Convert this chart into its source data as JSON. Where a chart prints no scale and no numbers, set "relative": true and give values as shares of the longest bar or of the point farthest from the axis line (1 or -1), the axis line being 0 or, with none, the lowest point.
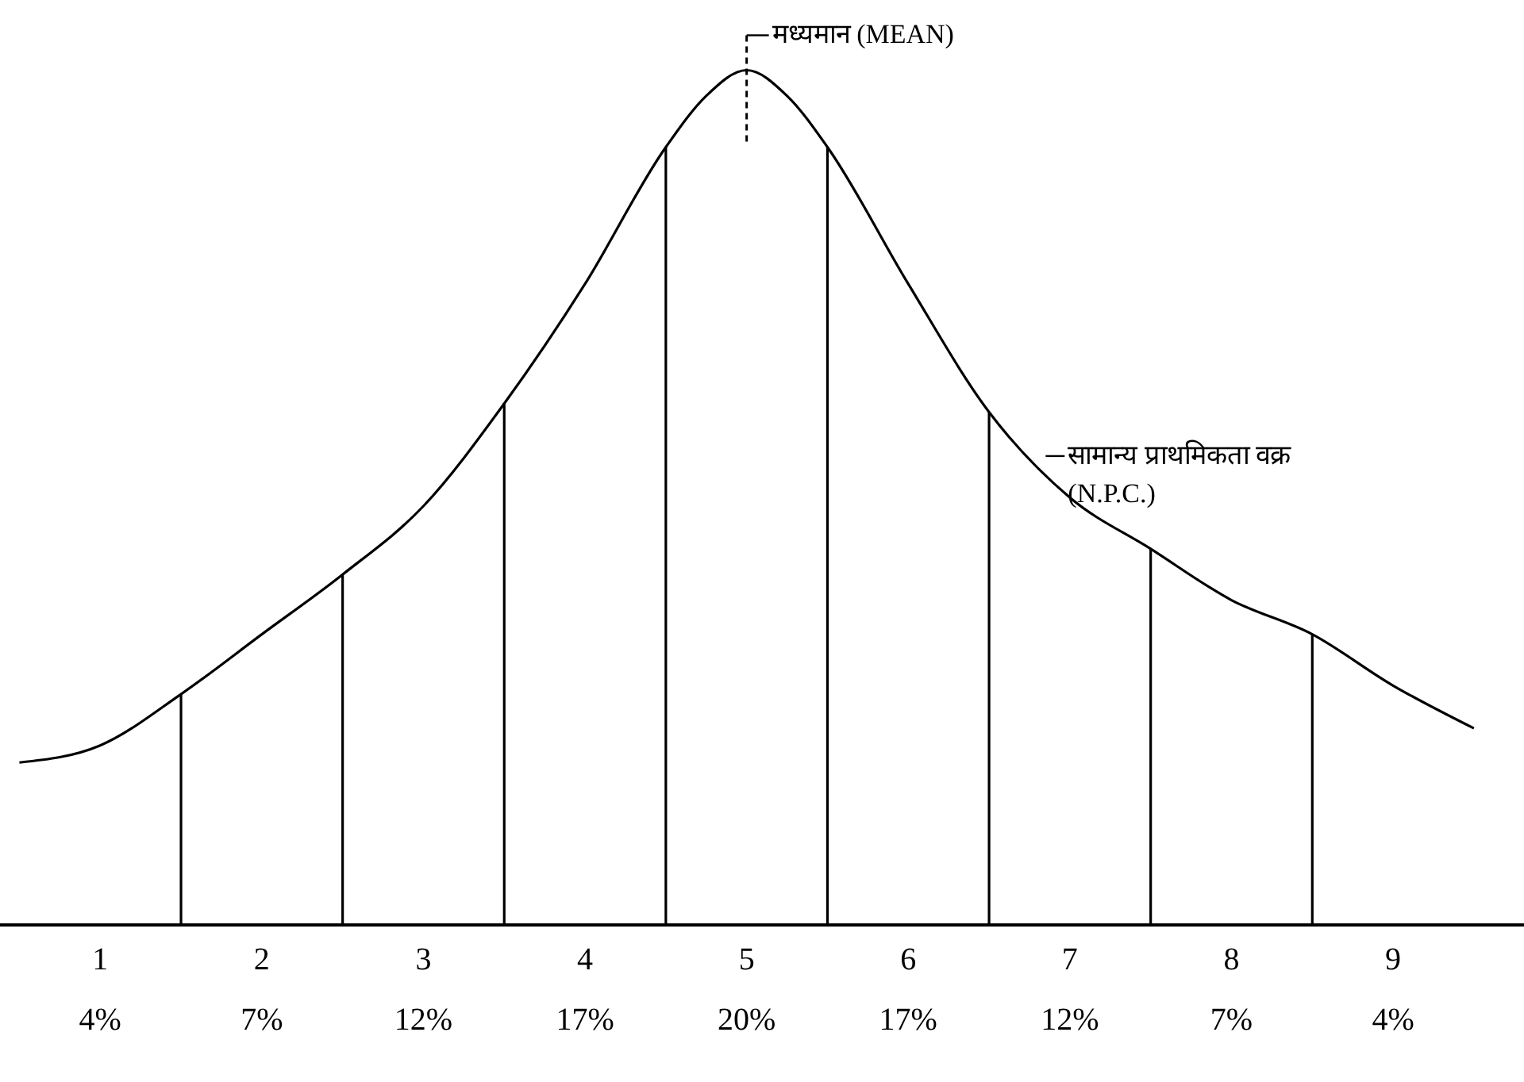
{
  "chart_data": {
    "type": "line",
    "relative": true,
    "legend": false,
    "marker": "none",
    "line_style": "solid",
    "grid": false,
    "xlim": [
      -0.12,
      9.31
    ],
    "xticks": [
      {
        "value": 0.5,
        "label": "1"
      },
      {
        "value": 1.5,
        "label": "2"
      },
      {
        "value": 2.5,
        "label": "3"
      },
      {
        "value": 3.5,
        "label": "4"
      },
      {
        "value": 4.5,
        "label": "5"
      },
      {
        "value": 5.5,
        "label": "6"
      },
      {
        "value": 6.5,
        "label": "7"
      },
      {
        "value": 7.5,
        "label": "8"
      },
      {
        "value": 8.5,
        "label": "9"
      }
    ],
    "tick_labels": "x",
    "series": [
      {
        "color": "#000000",
        "x": [
          0,
          0.5,
          1,
          1.5,
          2,
          2.5,
          3,
          3.5,
          4,
          4.25,
          4.5,
          4.75,
          5,
          5.5,
          6,
          6.5,
          7,
          7.5,
          8,
          8.5,
          9
        ],
        "values": [
          0.19,
          0.21,
          0.27,
          0.34,
          0.41,
          0.49,
          0.61,
          0.75,
          0.91,
          0.97,
          1.0,
          0.97,
          0.91,
          0.75,
          0.6,
          0.5,
          0.44,
          0.38,
          0.34,
          0.28,
          0.23
        ]
      },
      {
        "color": "#000000",
        "x": [
          1,
          1
        ],
        "values": [
          0,
          0.27
        ]
      },
      {
        "color": "#000000",
        "x": [
          2,
          2
        ],
        "values": [
          0,
          0.41
        ]
      },
      {
        "color": "#000000",
        "x": [
          3,
          3
        ],
        "values": [
          0,
          0.61
        ]
      },
      {
        "color": "#000000",
        "x": [
          4,
          4
        ],
        "values": [
          0,
          0.91
        ]
      },
      {
        "color": "#000000",
        "x": [
          5,
          5
        ],
        "values": [
          0,
          0.91
        ]
      },
      {
        "color": "#000000",
        "x": [
          6,
          6
        ],
        "values": [
          0,
          0.6
        ]
      },
      {
        "color": "#000000",
        "x": [
          7,
          7
        ],
        "values": [
          0,
          0.44
        ]
      },
      {
        "color": "#000000",
        "x": [
          8,
          8
        ],
        "values": [
          0,
          0.34
        ]
      }
    ],
    "annotations": [
      {
        "text": "मध्यमान (MEAN)",
        "x": 4.5,
        "y": 1.0
      },
      {
        "text": "सामान्य प्राथमिकता वक्र (N.P.C.)",
        "x": 6.35,
        "y": 0.53
      },
      "4%",
      "7%",
      "12%",
      "17%",
      "20%",
      "17%",
      "12%",
      "7%",
      "4%"
    ]
  }
}
